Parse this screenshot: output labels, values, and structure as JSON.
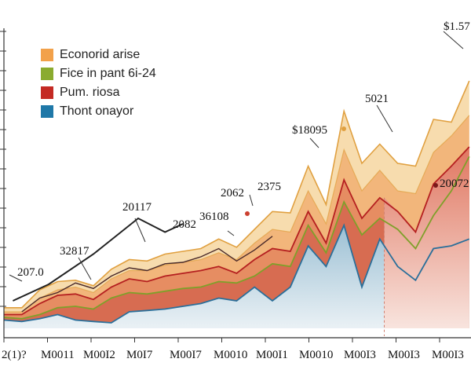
{
  "chart_data": {
    "type": "area",
    "title": "",
    "xlabel": "",
    "ylabel": "",
    "x_tick_labels": [
      "2(1)?",
      "M0011",
      "M00I2",
      "M0I7",
      "M00I7",
      "M0010",
      "M00I1",
      "M0010",
      "M00I3",
      "M00I3",
      "M00I3"
    ],
    "legend": [
      "Econorid arise",
      "Fice in pant 6i-24",
      "Pum. riosa",
      "Thont onayor"
    ],
    "colors": {
      "band_outer": "#f7dcae",
      "band_orange": "#f2b67b",
      "band_mid": "#e68d62",
      "band_deep": "#d4664f",
      "edge": "#e0a040",
      "line_red": "#b52020",
      "line_green": "#7fa02a",
      "line_blue": "#2a6f9a",
      "area_blue_top": "#9cc0d4",
      "area_blue_bottom": "#eaf1f5",
      "forecast_top": "#e07660",
      "forecast_bottom": "#f8e4de",
      "legend_orange": "#f2a14a",
      "legend_green": "#8aab2f",
      "legend_red": "#c42a24",
      "legend_blue": "#1f78a8"
    },
    "x": [
      0,
      4,
      8,
      12,
      16,
      20,
      24,
      28,
      32,
      36,
      40,
      44,
      48,
      52,
      56,
      60,
      64,
      68,
      72,
      76,
      80,
      84,
      88,
      92,
      96,
      100,
      104
    ],
    "series": [
      {
        "key": "outer",
        "values": [
          15,
          15,
          28,
          34,
          35,
          31,
          43,
          50,
          49,
          54,
          56,
          58,
          65,
          59,
          72,
          85,
          84,
          118,
          90,
          158,
          120,
          134,
          120,
          118,
          152,
          150,
          180
        ]
      },
      {
        "name": "Econorid arise",
        "values": [
          12,
          12,
          22,
          28,
          30,
          26,
          36,
          42,
          42,
          46,
          48,
          50,
          55,
          50,
          62,
          72,
          70,
          100,
          76,
          130,
          100,
          115,
          100,
          98,
          128,
          140,
          155
        ]
      },
      {
        "name": "Pum. riosa",
        "values": [
          10,
          10,
          18,
          24,
          25,
          21,
          30,
          36,
          34,
          38,
          40,
          42,
          45,
          40,
          50,
          58,
          56,
          85,
          62,
          108,
          80,
          95,
          85,
          70,
          105,
          118,
          132
        ]
      },
      {
        "name": "Fice in pant 6i-24",
        "values": [
          8,
          7,
          10,
          15,
          16,
          14,
          22,
          26,
          25,
          27,
          29,
          30,
          34,
          33,
          38,
          47,
          45,
          75,
          55,
          92,
          68,
          80,
          72,
          58,
          82,
          100,
          125
        ]
      },
      {
        "name": "Thont onayor",
        "values": [
          6,
          5,
          7,
          10,
          6,
          5,
          4,
          12,
          13,
          14,
          16,
          18,
          22,
          20,
          30,
          20,
          30,
          60,
          45,
          75,
          30,
          65,
          45,
          35,
          58,
          60,
          65
        ]
      }
    ],
    "dark_overlay": {
      "x": [
        4,
        8,
        12,
        16,
        20,
        24,
        28,
        32,
        36,
        40,
        44,
        48,
        52,
        56,
        60
      ],
      "values": [
        12,
        22,
        26,
        33,
        29,
        38,
        44,
        42,
        47,
        48,
        52,
        58,
        49,
        57,
        67
      ]
    },
    "black_line": {
      "x": [
        2,
        10,
        20,
        30,
        36,
        40
      ],
      "values": [
        20,
        32,
        54,
        80,
        70,
        76
      ]
    },
    "forecast_region": {
      "x_start": 85,
      "x_end": 104
    },
    "annotations": [
      "$1.57",
      "5021",
      "$18095",
      "20072",
      "2375",
      "2062",
      "36108",
      "20117",
      "2082",
      "32817",
      "207.0"
    ],
    "ylim": [
      0,
      200
    ]
  }
}
